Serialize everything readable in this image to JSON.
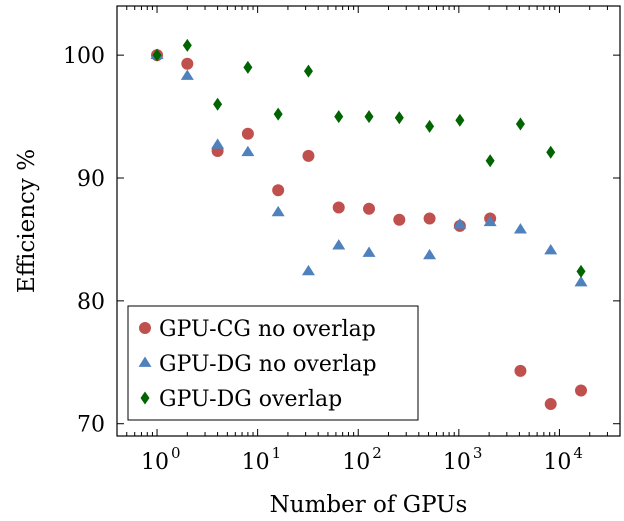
{
  "chart_data": {
    "type": "scatter",
    "title": "",
    "xlabel": "Number of GPUs",
    "ylabel": "Efficiency %",
    "xscale": "log",
    "xlim": [
      0.4,
      40000
    ],
    "ylim": [
      69,
      104
    ],
    "x_ticks": [
      1,
      10,
      100,
      1000,
      10000
    ],
    "x_tick_labels": [
      {
        "base": "10",
        "exp": "0"
      },
      {
        "base": "10",
        "exp": "1"
      },
      {
        "base": "10",
        "exp": "2"
      },
      {
        "base": "10",
        "exp": "3"
      },
      {
        "base": "10",
        "exp": "4"
      }
    ],
    "y_ticks": [
      70,
      80,
      90,
      100
    ],
    "y_tick_labels": [
      "70",
      "80",
      "90",
      "100"
    ],
    "grid": false,
    "legend_position": "bottom-left",
    "series": [
      {
        "name": "GPU-CG no overlap",
        "marker": "circle",
        "color": "#c0504d",
        "points": [
          [
            1,
            100.0
          ],
          [
            2,
            99.3
          ],
          [
            4,
            92.2
          ],
          [
            8,
            93.6
          ],
          [
            16,
            89.0
          ],
          [
            32,
            91.8
          ],
          [
            64,
            87.6
          ],
          [
            128,
            87.5
          ],
          [
            256,
            86.6
          ],
          [
            512,
            86.7
          ],
          [
            1024,
            86.1
          ],
          [
            2048,
            86.7
          ],
          [
            4096,
            74.3
          ],
          [
            8192,
            71.6
          ],
          [
            16384,
            72.7
          ]
        ]
      },
      {
        "name": "GPU-DG no overlap",
        "marker": "triangle",
        "color": "#4f81bd",
        "points": [
          [
            1,
            100.0
          ],
          [
            2,
            98.3
          ],
          [
            4,
            92.7
          ],
          [
            8,
            92.1
          ],
          [
            16,
            87.2
          ],
          [
            32,
            82.4
          ],
          [
            64,
            84.5
          ],
          [
            128,
            83.9
          ],
          [
            512,
            83.7
          ],
          [
            1024,
            86.2
          ],
          [
            2048,
            86.4
          ],
          [
            4096,
            85.8
          ],
          [
            8192,
            84.1
          ],
          [
            16384,
            81.5
          ]
        ]
      },
      {
        "name": "GPU-DG overlap",
        "marker": "diamond",
        "color": "#006400",
        "points": [
          [
            1,
            100.0
          ],
          [
            2,
            100.8
          ],
          [
            4,
            96.0
          ],
          [
            8,
            99.0
          ],
          [
            16,
            95.2
          ],
          [
            32,
            98.7
          ],
          [
            64,
            95.0
          ],
          [
            128,
            95.0
          ],
          [
            256,
            94.9
          ],
          [
            512,
            94.2
          ],
          [
            1024,
            94.7
          ],
          [
            2048,
            91.4
          ],
          [
            4096,
            94.4
          ],
          [
            8192,
            92.1
          ],
          [
            16384,
            82.4
          ]
        ]
      }
    ]
  }
}
